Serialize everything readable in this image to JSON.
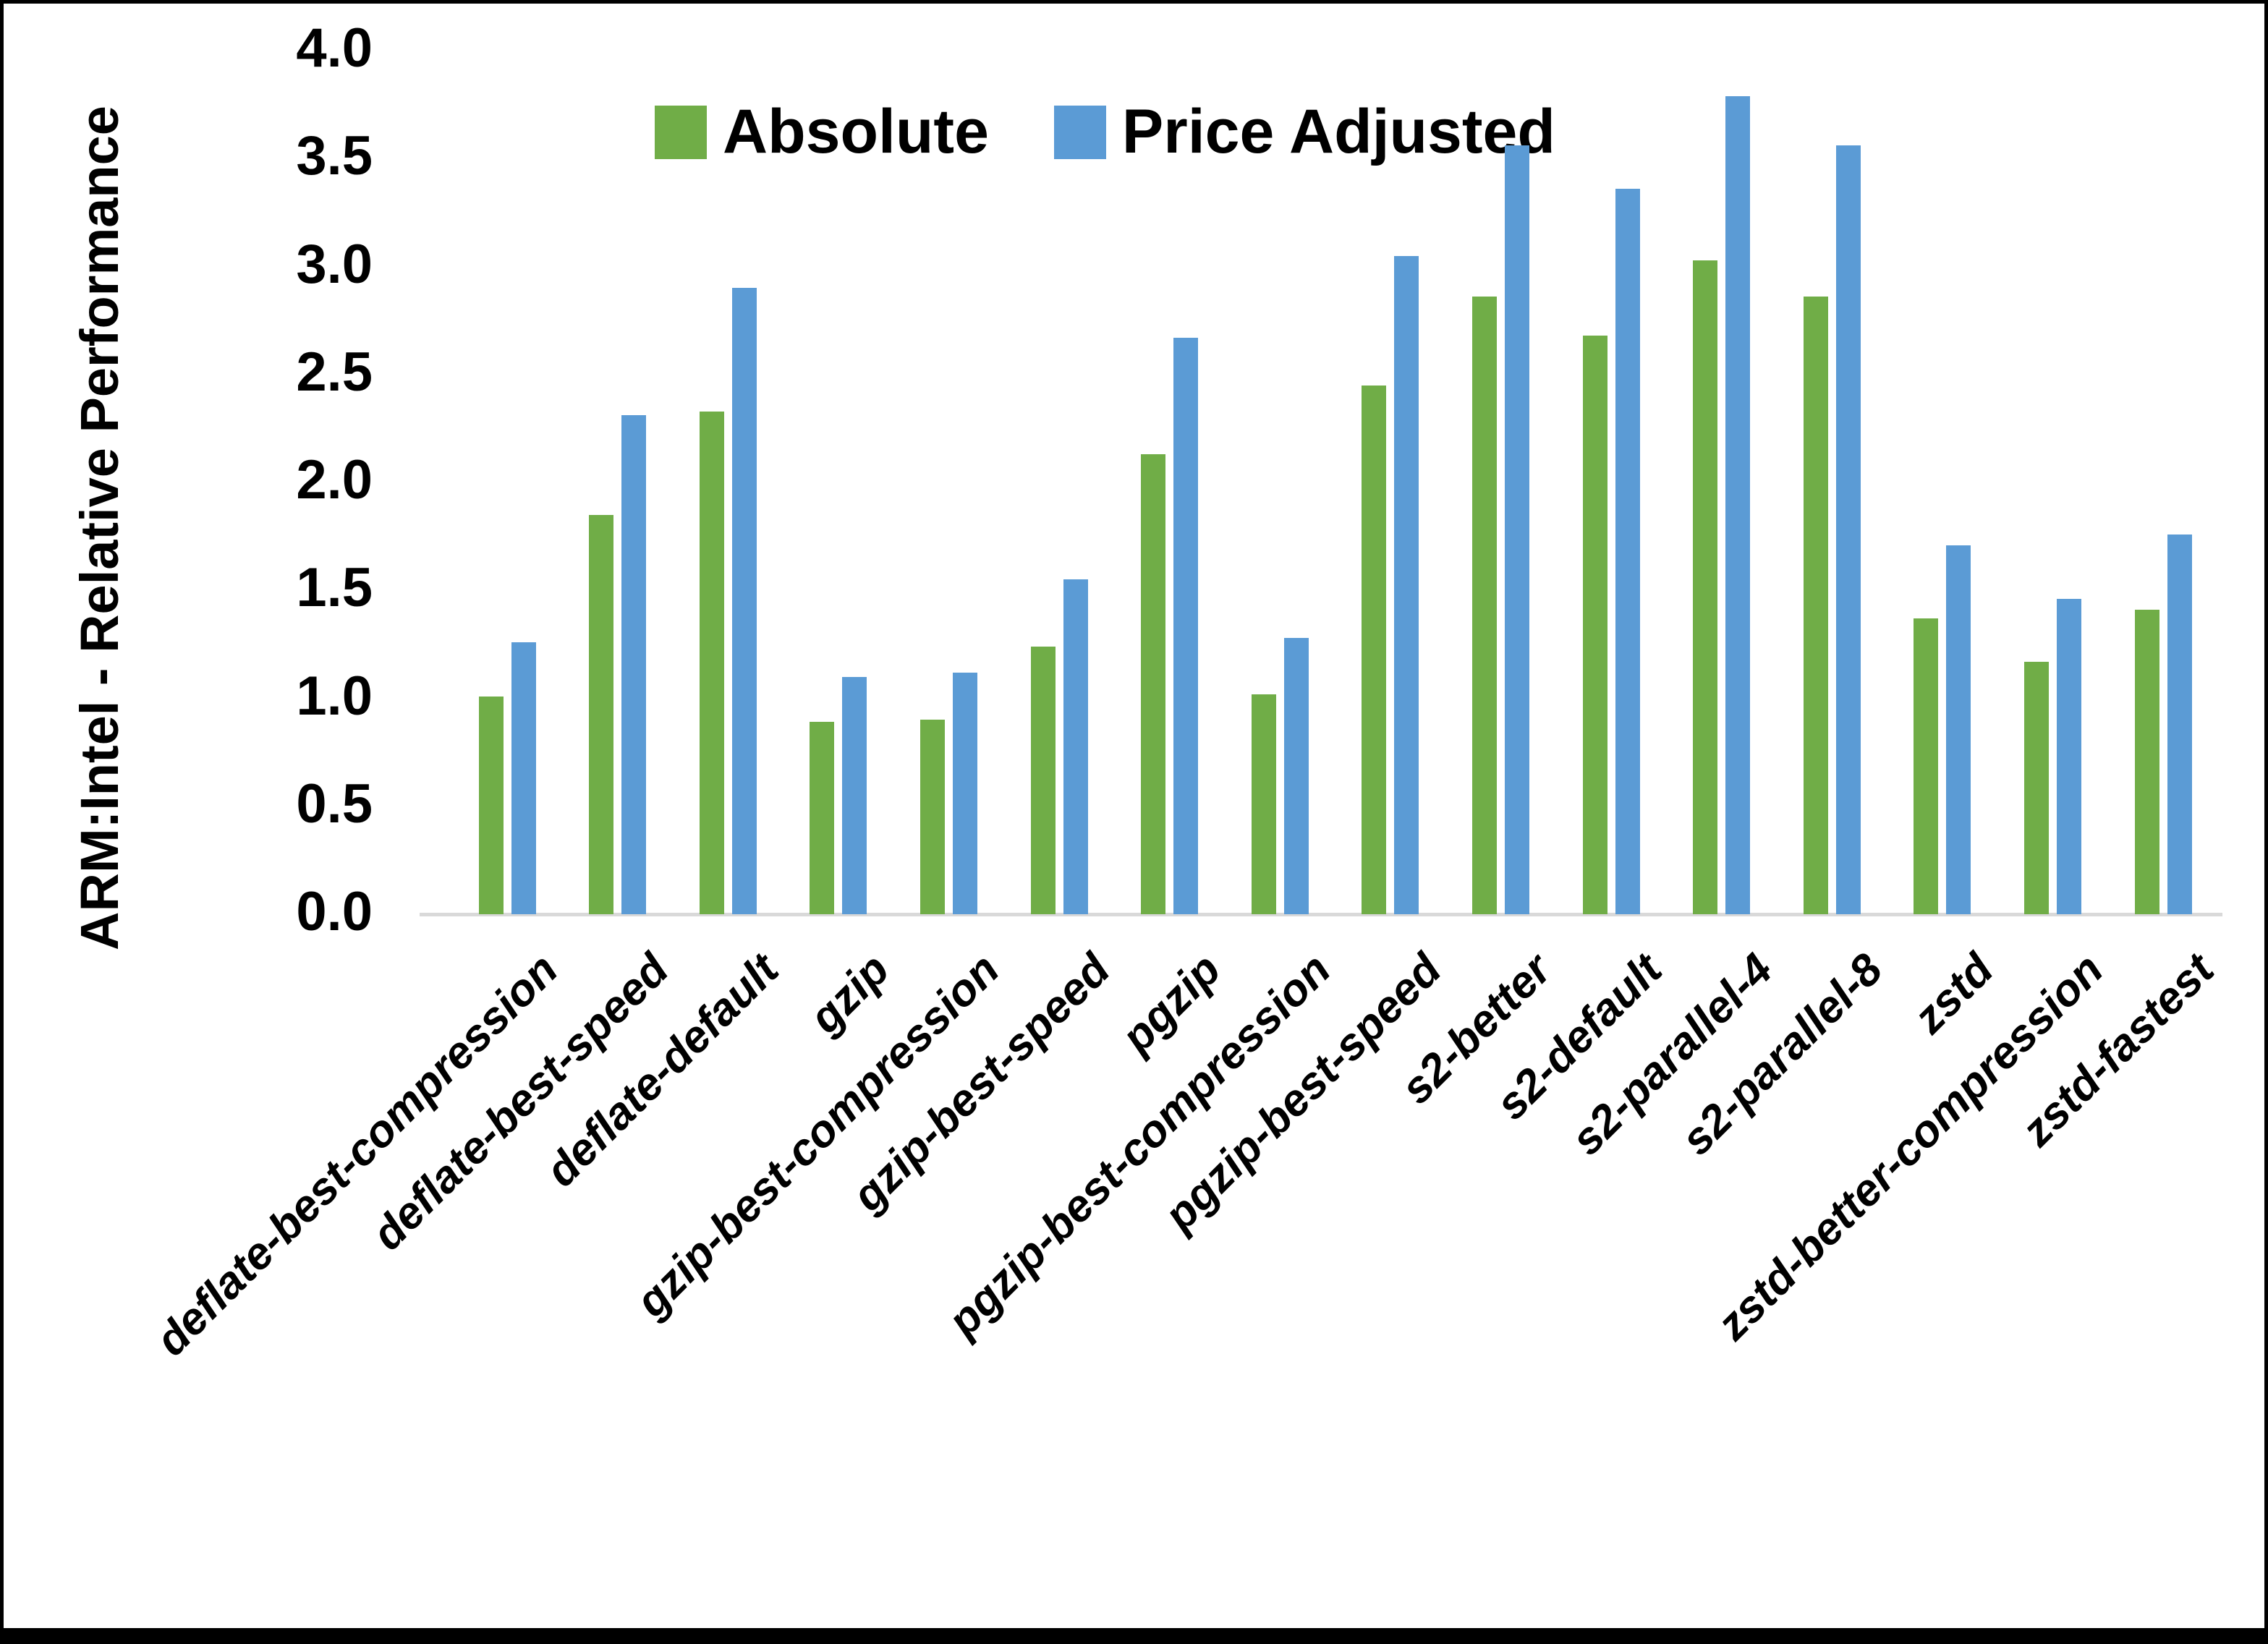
{
  "y_axis_title": "ARM:Intel - Relative Performance",
  "legend": [
    {
      "label": "Absolute",
      "color": "#70AD47"
    },
    {
      "label": "Price Adjusted",
      "color": "#5B9BD5"
    }
  ],
  "y_tick_labels": [
    "0.0",
    "0.5",
    "1.0",
    "1.5",
    "2.0",
    "2.5",
    "3.0",
    "3.5",
    "4.0"
  ],
  "chart_data": {
    "type": "bar",
    "title": "",
    "xlabel": "",
    "ylabel": "ARM:Intel - Relative Performance",
    "ylim": [
      0.0,
      4.0
    ],
    "ytick_step": 0.5,
    "grid": false,
    "legend_position": "top-center",
    "categories": [
      "deflate-best-compression",
      "deflate-best-speed",
      "deflate-default",
      "gzip",
      "gzip-best-compression",
      "gzip-best-speed",
      "pgzip",
      "pgzip-best-compression",
      "pgzip-best-speed",
      "s2-better",
      "s2-default",
      "s2-parallel-4",
      "s2-parallel-8",
      "zstd",
      "zstd-better-compression",
      "zstd-fastest"
    ],
    "series": [
      {
        "name": "Absolute",
        "color": "#70AD47",
        "values": [
          1.01,
          1.85,
          2.33,
          0.89,
          0.9,
          1.24,
          2.13,
          1.02,
          2.45,
          2.86,
          2.68,
          3.03,
          2.86,
          1.37,
          1.17,
          1.41
        ]
      },
      {
        "name": "Price Adjusted",
        "color": "#5B9BD5",
        "values": [
          1.26,
          2.31,
          2.9,
          1.1,
          1.12,
          1.55,
          2.67,
          1.28,
          3.05,
          3.56,
          3.36,
          3.79,
          3.56,
          1.71,
          1.46,
          1.76
        ]
      }
    ]
  }
}
